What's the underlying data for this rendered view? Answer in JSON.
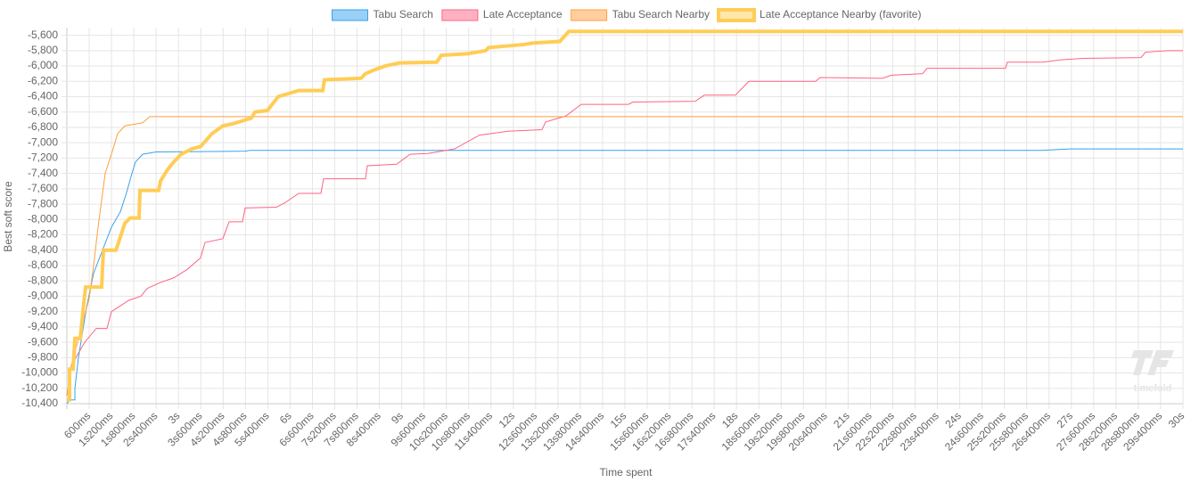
{
  "chart_data": {
    "type": "line",
    "step": false,
    "x_label": "Time spent",
    "y_label": "Best soft score",
    "watermark": "timefold",
    "xlim": [
      0,
      30000
    ],
    "ylim": [
      -10400,
      -5500
    ],
    "grid": true,
    "legend": "top",
    "xticks": [
      {
        "value": 600,
        "label": "600ms"
      },
      {
        "value": 1200,
        "label": "1s200ms"
      },
      {
        "value": 1800,
        "label": "1s800ms"
      },
      {
        "value": 2400,
        "label": "2s400ms"
      },
      {
        "value": 3000,
        "label": "3s"
      },
      {
        "value": 3600,
        "label": "3s600ms"
      },
      {
        "value": 4200,
        "label": "4s200ms"
      },
      {
        "value": 4800,
        "label": "4s800ms"
      },
      {
        "value": 5400,
        "label": "5s400ms"
      },
      {
        "value": 6000,
        "label": "6s"
      },
      {
        "value": 6600,
        "label": "6s600ms"
      },
      {
        "value": 7200,
        "label": "7s200ms"
      },
      {
        "value": 7800,
        "label": "7s800ms"
      },
      {
        "value": 8400,
        "label": "8s400ms"
      },
      {
        "value": 9000,
        "label": "9s"
      },
      {
        "value": 9600,
        "label": "9s600ms"
      },
      {
        "value": 10200,
        "label": "10s200ms"
      },
      {
        "value": 10800,
        "label": "10s800ms"
      },
      {
        "value": 11400,
        "label": "11s400ms"
      },
      {
        "value": 12000,
        "label": "12s"
      },
      {
        "value": 12600,
        "label": "12s600ms"
      },
      {
        "value": 13200,
        "label": "13s200ms"
      },
      {
        "value": 13800,
        "label": "13s800ms"
      },
      {
        "value": 14400,
        "label": "14s400ms"
      },
      {
        "value": 15000,
        "label": "15s"
      },
      {
        "value": 15600,
        "label": "15s600ms"
      },
      {
        "value": 16200,
        "label": "16s200ms"
      },
      {
        "value": 16800,
        "label": "16s800ms"
      },
      {
        "value": 17400,
        "label": "17s400ms"
      },
      {
        "value": 18000,
        "label": "18s"
      },
      {
        "value": 18600,
        "label": "18s600ms"
      },
      {
        "value": 19200,
        "label": "19s200ms"
      },
      {
        "value": 19800,
        "label": "19s800ms"
      },
      {
        "value": 20400,
        "label": "20s400ms"
      },
      {
        "value": 21000,
        "label": "21s"
      },
      {
        "value": 21600,
        "label": "21s600ms"
      },
      {
        "value": 22200,
        "label": "22s200ms"
      },
      {
        "value": 22800,
        "label": "22s800ms"
      },
      {
        "value": 23400,
        "label": "23s400ms"
      },
      {
        "value": 24000,
        "label": "24s"
      },
      {
        "value": 24600,
        "label": "24s600ms"
      },
      {
        "value": 25200,
        "label": "25s200ms"
      },
      {
        "value": 25800,
        "label": "25s800ms"
      },
      {
        "value": 26400,
        "label": "26s400ms"
      },
      {
        "value": 27000,
        "label": "27s"
      },
      {
        "value": 27600,
        "label": "27s600ms"
      },
      {
        "value": 28200,
        "label": "28s200ms"
      },
      {
        "value": 28800,
        "label": "28s800ms"
      },
      {
        "value": 29400,
        "label": "29s400ms"
      },
      {
        "value": 30000,
        "label": "30s"
      }
    ],
    "yticks": [
      {
        "value": -10400,
        "label": "-10,400"
      },
      {
        "value": -10200,
        "label": "-10,200"
      },
      {
        "value": -10000,
        "label": "-10,000"
      },
      {
        "value": -9800,
        "label": "-9,800"
      },
      {
        "value": -9600,
        "label": "-9,600"
      },
      {
        "value": -9400,
        "label": "-9,400"
      },
      {
        "value": -9200,
        "label": "-9,200"
      },
      {
        "value": -9000,
        "label": "-9,000"
      },
      {
        "value": -8800,
        "label": "-8,800"
      },
      {
        "value": -8600,
        "label": "-8,600"
      },
      {
        "value": -8400,
        "label": "-8,400"
      },
      {
        "value": -8200,
        "label": "-8,200"
      },
      {
        "value": -8000,
        "label": "-8,000"
      },
      {
        "value": -7800,
        "label": "-7,800"
      },
      {
        "value": -7600,
        "label": "-7,600"
      },
      {
        "value": -7400,
        "label": "-7,400"
      },
      {
        "value": -7200,
        "label": "-7,200"
      },
      {
        "value": -7000,
        "label": "-7,000"
      },
      {
        "value": -6800,
        "label": "-6,800"
      },
      {
        "value": -6600,
        "label": "-6,600"
      },
      {
        "value": -6400,
        "label": "-6,400"
      },
      {
        "value": -6200,
        "label": "-6,200"
      },
      {
        "value": -6000,
        "label": "-6,000"
      },
      {
        "value": -5800,
        "label": "-5,800"
      },
      {
        "value": -5600,
        "label": "-5,600"
      }
    ],
    "series": [
      {
        "name": "Tabu Search",
        "color": "#36a2eb",
        "fill": "#9ad0f5",
        "line_width": 1,
        "x": [
          0,
          72,
          216,
          216,
          311,
          527,
          719,
          958,
          1198,
          1437,
          1605,
          1749,
          1845,
          2037,
          2396,
          4792,
          4912,
          26188,
          26955,
          30000
        ],
        "values": [
          -10400,
          -10350,
          -10350,
          -10200,
          -9800,
          -9150,
          -8700,
          -8400,
          -8100,
          -7900,
          -7650,
          -7400,
          -7250,
          -7150,
          -7120,
          -7110,
          -7100,
          -7100,
          -7080,
          -7080
        ]
      },
      {
        "name": "Late Acceptance",
        "color": "#ff6384",
        "fill": "#ffb1c1",
        "line_width": 1,
        "x": [
          0,
          120,
          360,
          479,
          791,
          1078,
          1198,
          1677,
          1989,
          2156,
          2516,
          2875,
          3235,
          3594,
          3714,
          4193,
          4361,
          4720,
          4792,
          5631,
          5870,
          6230,
          6829,
          6900,
          8027,
          8075,
          8865,
          9225,
          9704,
          10423,
          11093,
          11860,
          12771,
          12866,
          13418,
          13825,
          15095,
          15215,
          16892,
          17131,
          17970,
          18090,
          18329,
          20126,
          20246,
          21923,
          22163,
          23002,
          23121,
          25230,
          25278,
          26236,
          26715,
          27314,
          28872,
          28992,
          29591,
          30000
        ],
        "values": [
          -10300,
          -9900,
          -9700,
          -9600,
          -9420,
          -9420,
          -9200,
          -9050,
          -9000,
          -8900,
          -8820,
          -8760,
          -8650,
          -8500,
          -8300,
          -8250,
          -8030,
          -8030,
          -7850,
          -7840,
          -7780,
          -7660,
          -7660,
          -7470,
          -7470,
          -7300,
          -7280,
          -7150,
          -7140,
          -7080,
          -6900,
          -6850,
          -6830,
          -6730,
          -6650,
          -6500,
          -6500,
          -6470,
          -6460,
          -6380,
          -6380,
          -6320,
          -6200,
          -6200,
          -6150,
          -6160,
          -6120,
          -6100,
          -6030,
          -6030,
          -5950,
          -5950,
          -5920,
          -5900,
          -5890,
          -5820,
          -5800,
          -5800
        ]
      },
      {
        "name": "Tabu Search Nearby",
        "color": "#ff9f40",
        "fill": "#ffcf9f",
        "line_width": 1,
        "x": [
          0,
          120,
          599,
          719,
          839,
          1030,
          1198,
          1366,
          1557,
          2037,
          2228,
          30000
        ],
        "values": [
          -10300,
          -9900,
          -9030,
          -8600,
          -8100,
          -7400,
          -7150,
          -6880,
          -6780,
          -6740,
          -6660,
          -6660
        ]
      },
      {
        "name": "Late Acceptance Nearby (favorite)",
        "color": "#ffcd56",
        "fill": "#ffe6aa",
        "line_width": 4,
        "x": [
          0,
          72,
          72,
          168,
          216,
          360,
          431,
          503,
          934,
          982,
          1318,
          1390,
          1557,
          1701,
          1941,
          1965,
          2468,
          2516,
          2707,
          2875,
          3067,
          3354,
          3594,
          3905,
          4193,
          4481,
          4960,
          5056,
          5391,
          5679,
          6230,
          6877,
          6925,
          7907,
          8027,
          8266,
          8554,
          8937,
          9943,
          10063,
          10782,
          11261,
          11333,
          12291,
          12531,
          13250,
          13490,
          30000
        ],
        "values": [
          -10350,
          -10350,
          -9950,
          -9950,
          -9550,
          -9550,
          -9200,
          -8880,
          -8880,
          -8400,
          -8400,
          -8300,
          -8050,
          -7980,
          -7980,
          -7620,
          -7620,
          -7500,
          -7350,
          -7250,
          -7150,
          -7080,
          -7050,
          -6880,
          -6780,
          -6750,
          -6680,
          -6600,
          -6580,
          -6400,
          -6320,
          -6320,
          -6180,
          -6160,
          -6100,
          -6050,
          -6000,
          -5960,
          -5950,
          -5860,
          -5840,
          -5800,
          -5760,
          -5720,
          -5700,
          -5680,
          -5550,
          -5550
        ]
      }
    ]
  }
}
